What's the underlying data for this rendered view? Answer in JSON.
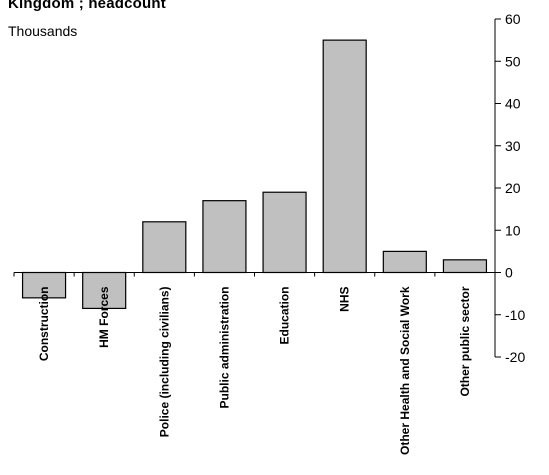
{
  "chart_data": {
    "type": "bar",
    "title": "Kingdom ; headcount",
    "ylabel": "Thousands",
    "xlabel": "",
    "categories": [
      "Construction",
      "HM Forces",
      "Police (including civilians)",
      "Public administration",
      "Education",
      "NHS",
      "Other Health and Social Work",
      "Other public sector"
    ],
    "values": [
      -6,
      -8.5,
      12,
      17,
      19,
      55,
      5,
      3
    ],
    "ylim": [
      -20,
      60
    ],
    "y_ticks": [
      -20,
      -10,
      0,
      10,
      20,
      30,
      40,
      50,
      60
    ],
    "y_axis_side": "right",
    "grid": false,
    "colors": {
      "bar_fill": "#c0c0c0",
      "bar_stroke": "#000000"
    }
  }
}
